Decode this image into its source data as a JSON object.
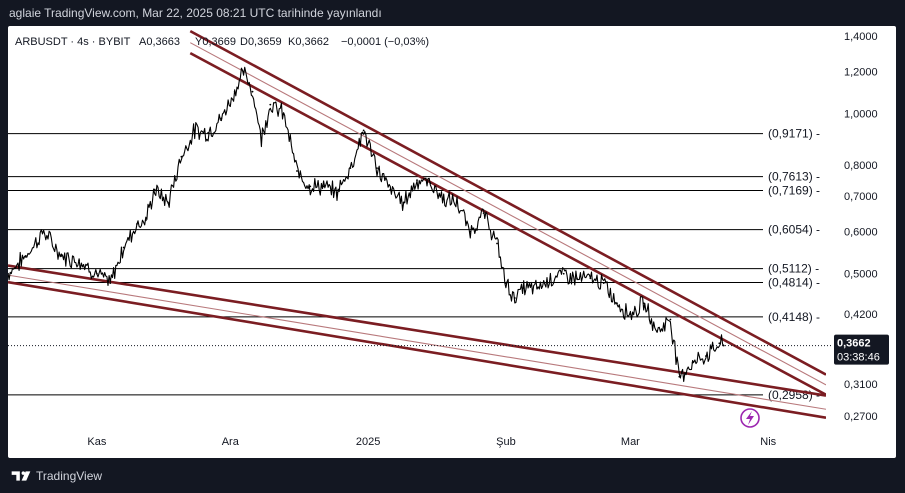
{
  "header": {
    "text": "aglaie TradingView.com, Mar 22, 2025 08:21 UTC tarihinde yayınlandı"
  },
  "footer": {
    "brand": "TradingView"
  },
  "colors": {
    "frame_bg": "#131722",
    "panel_bg": "#ffffff",
    "price_line": "#000000",
    "trend_line": "#7b1d22",
    "trend_line_thin": "#b8797c",
    "level_line": "#000000",
    "accent_purple": "#9c27b0"
  },
  "legend": {
    "symbol": "ARBUSDT · 4s · BYBIT",
    "open": "A0,3663",
    "high": "Y0,3669",
    "low": "D0,3659",
    "close": "K0,3662",
    "change": "−0,0001 (−0,03%)"
  },
  "price_tag": {
    "price": "0,3662",
    "timer": "03:38:46"
  },
  "chart_data": {
    "type": "line",
    "title": "ARBUSDT · 4s · BYBIT",
    "y_scale": "log",
    "ylim": [
      0.25,
      1.45
    ],
    "y_ticks": [
      1.4,
      1.2,
      1.0,
      0.8,
      0.7,
      0.6,
      0.5,
      0.42,
      0.31,
      0.27
    ],
    "y_tick_labels": [
      "1,4000",
      "1,2000",
      "1,0000",
      "0,8000",
      "0,7000",
      "0,6000",
      "0,5000",
      "0,4200",
      "0,3100",
      "0,2700"
    ],
    "x_range": [
      "2024-10-12",
      "2025-04-14"
    ],
    "x_ticks": [
      {
        "date": "2024-11-01",
        "label": "Kas"
      },
      {
        "date": "2024-12-01",
        "label": "Ara"
      },
      {
        "date": "2025-01-01",
        "label": "2025"
      },
      {
        "date": "2025-02-01",
        "label": "Şub"
      },
      {
        "date": "2025-03-01",
        "label": "Mar"
      },
      {
        "date": "2025-04-01",
        "label": "Nis"
      }
    ],
    "grid": false,
    "levels": [
      {
        "value": 0.9171,
        "label": "(0,9171)"
      },
      {
        "value": 0.7613,
        "label": "(0,7613)"
      },
      {
        "value": 0.7169,
        "label": "(0,7169)"
      },
      {
        "value": 0.6054,
        "label": "(0,6054)"
      },
      {
        "value": 0.5112,
        "label": "(0,5112)"
      },
      {
        "value": 0.4814,
        "label": "(0,4814)"
      },
      {
        "value": 0.4148,
        "label": "(0,4148)"
      },
      {
        "value": 0.2958,
        "label": "(0,2958)"
      }
    ],
    "current_price": 0.3662,
    "trendlines": [
      {
        "name": "upper-outer",
        "from": {
          "date": "2024-11-22",
          "price": 1.43
        },
        "to": {
          "date": "2025-04-14",
          "price": 0.323
        },
        "style": "thick"
      },
      {
        "name": "upper-middle",
        "from": {
          "date": "2024-11-22",
          "price": 1.36
        },
        "to": {
          "date": "2025-04-14",
          "price": 0.309
        },
        "style": "thin"
      },
      {
        "name": "upper-inner",
        "from": {
          "date": "2024-11-22",
          "price": 1.3
        },
        "to": {
          "date": "2025-04-14",
          "price": 0.296
        },
        "style": "thick"
      },
      {
        "name": "lower-upper",
        "from": {
          "date": "2024-10-12",
          "price": 0.518
        },
        "to": {
          "date": "2025-04-14",
          "price": 0.295
        },
        "style": "thick"
      },
      {
        "name": "lower-middle",
        "from": {
          "date": "2024-10-12",
          "price": 0.497
        },
        "to": {
          "date": "2025-04-14",
          "price": 0.278
        },
        "style": "thin"
      },
      {
        "name": "lower-lower",
        "from": {
          "date": "2024-10-12",
          "price": 0.482
        },
        "to": {
          "date": "2025-04-14",
          "price": 0.268
        },
        "style": "thick"
      }
    ],
    "series": [
      {
        "x": [
          "2024-10-12",
          "2024-10-16",
          "2024-10-20",
          "2024-10-24",
          "2024-10-28",
          "2024-11-01",
          "2024-11-04",
          "2024-11-07",
          "2024-11-10",
          "2024-11-12",
          "2024-11-14",
          "2024-11-17",
          "2024-11-20",
          "2024-11-23",
          "2024-11-26",
          "2024-11-29",
          "2024-12-02",
          "2024-12-04",
          "2024-12-06",
          "2024-12-08",
          "2024-12-10",
          "2024-12-13",
          "2024-12-16",
          "2024-12-19",
          "2024-12-22",
          "2024-12-25",
          "2024-12-28",
          "2024-12-31",
          "2025-01-03",
          "2025-01-06",
          "2025-01-09",
          "2025-01-12",
          "2025-01-15",
          "2025-01-18",
          "2025-01-21",
          "2025-01-24",
          "2025-01-27",
          "2025-01-30",
          "2025-02-01",
          "2025-02-03",
          "2025-02-05",
          "2025-02-08",
          "2025-02-11",
          "2025-02-14",
          "2025-02-17",
          "2025-02-20",
          "2025-02-23",
          "2025-02-26",
          "2025-03-01",
          "2025-03-04",
          "2025-03-07",
          "2025-03-10",
          "2025-03-12",
          "2025-03-15",
          "2025-03-18",
          "2025-03-21",
          "2025-03-22"
        ],
        "values": [
          0.5,
          0.54,
          0.6,
          0.54,
          0.53,
          0.5,
          0.48,
          0.56,
          0.62,
          0.63,
          0.72,
          0.68,
          0.83,
          0.93,
          0.92,
          0.98,
          1.1,
          1.2,
          1.1,
          0.9,
          1.04,
          1.0,
          0.78,
          0.73,
          0.73,
          0.71,
          0.79,
          0.93,
          0.79,
          0.72,
          0.68,
          0.75,
          0.74,
          0.69,
          0.68,
          0.6,
          0.65,
          0.57,
          0.48,
          0.45,
          0.47,
          0.47,
          0.49,
          0.5,
          0.49,
          0.49,
          0.48,
          0.44,
          0.42,
          0.44,
          0.39,
          0.41,
          0.32,
          0.34,
          0.35,
          0.37,
          0.3662
        ]
      }
    ]
  }
}
